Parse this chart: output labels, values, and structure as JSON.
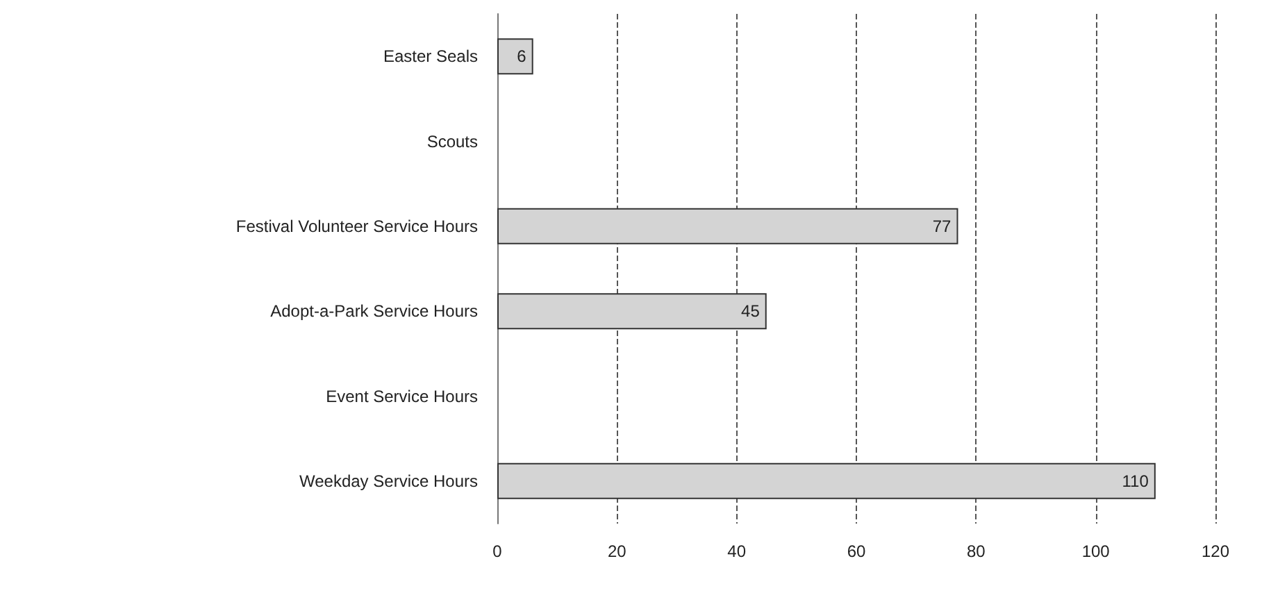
{
  "chart_data": {
    "type": "bar",
    "orientation": "horizontal",
    "categories": [
      "Easter Seals",
      "Scouts",
      "Festival Volunteer Service Hours",
      "Adopt-a-Park Service Hours",
      "Event Service Hours",
      "Weekday Service Hours"
    ],
    "values": [
      6,
      null,
      77,
      45,
      null,
      110
    ],
    "color": "#d4d4d4",
    "xlim": [
      0,
      120
    ],
    "xticks": [
      0,
      20,
      40,
      60,
      80,
      100,
      120
    ],
    "grid": "x",
    "data_labels": true
  }
}
